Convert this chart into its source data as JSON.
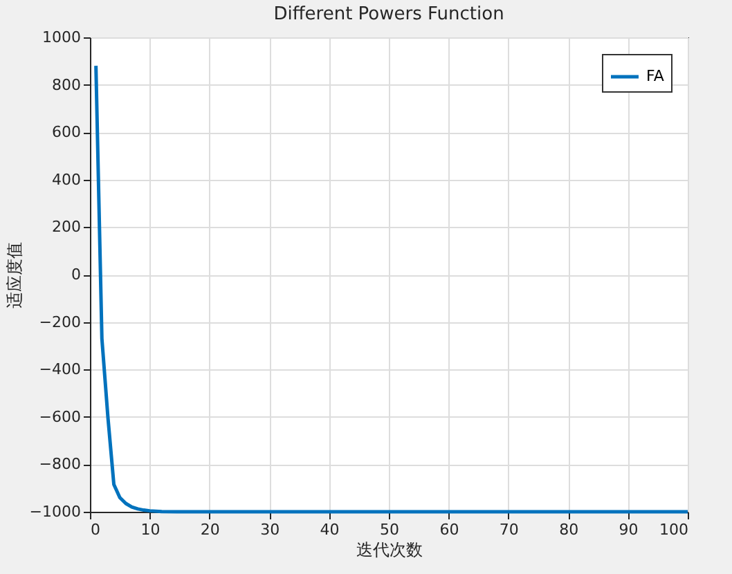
{
  "chart_data": {
    "type": "line",
    "title": "Different Powers Function",
    "xlabel": "迭代次数",
    "ylabel": "适应度值",
    "x": [
      1,
      2,
      3,
      4,
      5,
      6,
      7,
      8,
      9,
      10,
      12,
      15,
      20,
      30,
      40,
      50,
      60,
      70,
      80,
      90,
      100
    ],
    "series": [
      {
        "name": "FA",
        "color": "#0072bd",
        "values": [
          880,
          -270,
          -600,
          -885,
          -940,
          -965,
          -980,
          -988,
          -993,
          -996,
          -999,
          -1000,
          -1000,
          -1000,
          -1000,
          -1000,
          -1000,
          -1000,
          -1000,
          -1000,
          -1000
        ]
      }
    ],
    "xlim": [
      0,
      100
    ],
    "xticks": [
      0,
      10,
      20,
      30,
      40,
      50,
      60,
      70,
      80,
      90,
      100
    ],
    "ylim": [
      -1000,
      1000
    ],
    "yticks": [
      -1000,
      -800,
      -600,
      -400,
      -200,
      0,
      200,
      400,
      600,
      800,
      1000
    ],
    "grid": true,
    "legend": "top right",
    "marker": "none",
    "line_style": "solid"
  }
}
